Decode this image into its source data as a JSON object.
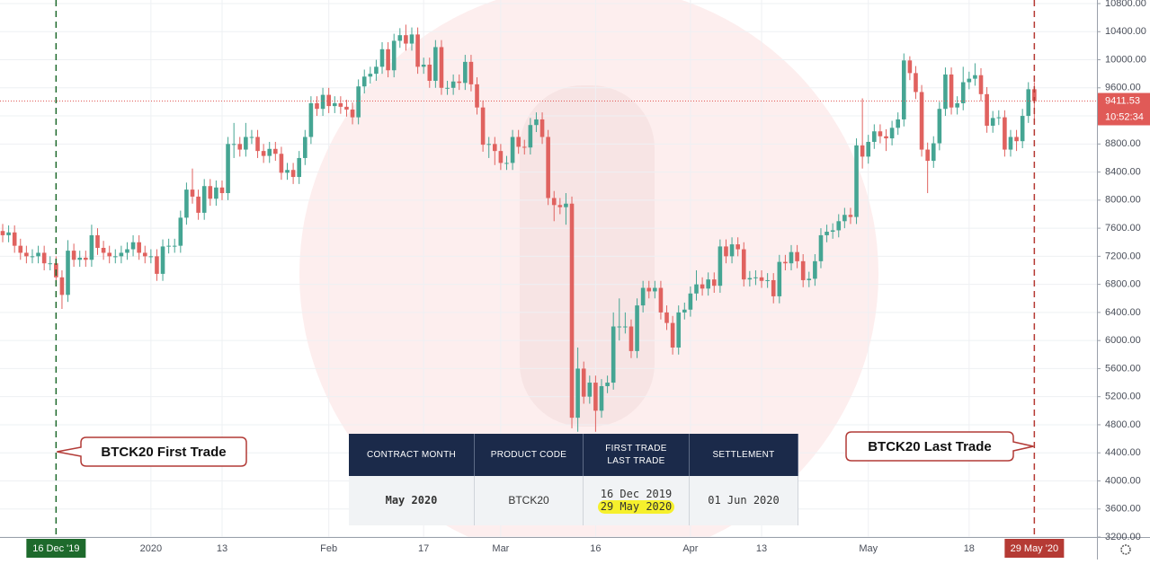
{
  "chart_data": {
    "type": "candlestick",
    "categories": [
      null,
      null,
      null,
      null,
      null,
      null,
      null,
      null,
      null,
      "16 Dec '19",
      null,
      null,
      null,
      null,
      null,
      null,
      null,
      null,
      null,
      null,
      null,
      null,
      null,
      null,
      null,
      "2020",
      null,
      null,
      null,
      null,
      null,
      null,
      null,
      null,
      null,
      null,
      null,
      "13",
      null,
      null,
      null,
      null,
      null,
      null,
      null,
      null,
      null,
      null,
      null,
      null,
      null,
      null,
      null,
      null,
      null,
      "Feb",
      null,
      null,
      null,
      null,
      null,
      null,
      null,
      null,
      null,
      null,
      null,
      null,
      null,
      null,
      null,
      "17",
      null,
      null,
      null,
      null,
      null,
      null,
      null,
      null,
      null,
      null,
      null,
      null,
      "Mar",
      null,
      null,
      null,
      null,
      null,
      null,
      null,
      null,
      null,
      null,
      null,
      null,
      null,
      null,
      null,
      "16",
      null,
      null,
      null,
      null,
      null,
      null,
      null,
      null,
      null,
      null,
      null,
      null,
      null,
      null,
      null,
      "Apr",
      null,
      null,
      null,
      null,
      null,
      null,
      null,
      null,
      null,
      null,
      null,
      "13",
      null,
      null,
      null,
      null,
      null,
      null,
      null,
      null,
      null,
      null,
      null,
      null,
      null,
      null,
      null,
      null,
      null,
      "May",
      null,
      null,
      null,
      null,
      null,
      null,
      null,
      null,
      null,
      null,
      null,
      null,
      null,
      null,
      null,
      null,
      "18",
      null,
      null,
      null,
      null,
      null,
      null,
      null,
      null,
      null,
      null,
      "29 May '20"
    ],
    "open": [
      7560,
      7500,
      7540,
      7350,
      7250,
      7200,
      7200,
      7250,
      7100,
      7100,
      6900,
      6650,
      7280,
      7150,
      7180,
      7150,
      7500,
      7320,
      7250,
      7200,
      7200,
      7250,
      7300,
      7400,
      7250,
      7200,
      7200,
      6950,
      7340,
      7350,
      7350,
      7750,
      8150,
      8050,
      7820,
      8200,
      8020,
      8180,
      8100,
      8800,
      8800,
      8720,
      8900,
      8900,
      8700,
      8630,
      8730,
      8660,
      8390,
      8430,
      8330,
      8600,
      8900,
      9380,
      9300,
      9500,
      9340,
      9380,
      9330,
      9290,
      9180,
      9620,
      9760,
      9800,
      9900,
      10150,
      9850,
      10270,
      10350,
      10230,
      10360,
      9900,
      9930,
      9700,
      10180,
      9600,
      9600,
      9690,
      9670,
      9970,
      9650,
      9320,
      8790,
      8800,
      8700,
      8530,
      8530,
      8900,
      8760,
      8750,
      9070,
      9150,
      8900,
      8030,
      7930,
      7900,
      7950,
      4900,
      5600,
      5200,
      5400,
      5000,
      5350,
      5400,
      6200,
      6200,
      6200,
      5850,
      6500,
      6750,
      6700,
      6750,
      6400,
      6250,
      5900,
      6400,
      6440,
      6670,
      6800,
      6740,
      6870,
      6780,
      7340,
      7200,
      7370,
      7300,
      6870,
      6890,
      6900,
      6850,
      6860,
      6630,
      7120,
      7100,
      7260,
      7130,
      6860,
      6880,
      7130,
      7500,
      7550,
      7570,
      7700,
      7790,
      7760,
      8780,
      8620,
      8830,
      8980,
      8910,
      8880,
      9030,
      9150,
      9990,
      9810,
      9540,
      8720,
      8560,
      8810,
      9300,
      9790,
      9320,
      9380,
      9680,
      9730,
      9780,
      9510,
      9060,
      9170,
      9180,
      8720,
      8900,
      8840,
      9200,
      9580
    ],
    "high": [
      7660,
      7640,
      7640,
      7450,
      7350,
      7300,
      7350,
      7350,
      7200,
      7200,
      7000,
      7430,
      7380,
      7280,
      7280,
      7650,
      7600,
      7420,
      7350,
      7300,
      7350,
      7400,
      7500,
      7500,
      7350,
      7300,
      7300,
      7440,
      7450,
      7450,
      7850,
      8250,
      8450,
      8150,
      8300,
      8300,
      8280,
      8280,
      8900,
      9100,
      8900,
      9100,
      9000,
      9000,
      8800,
      8830,
      8830,
      8760,
      8530,
      8530,
      8700,
      9000,
      9480,
      9480,
      9600,
      9600,
      9480,
      9480,
      9430,
      9390,
      9720,
      9860,
      9900,
      10000,
      10250,
      10250,
      10370,
      10450,
      10500,
      10460,
      10460,
      10030,
      10030,
      10280,
      10280,
      9700,
      9790,
      9790,
      10070,
      10070,
      9750,
      9420,
      8900,
      8900,
      8800,
      8630,
      9000,
      9000,
      8860,
      9170,
      9250,
      9250,
      9000,
      8130,
      8030,
      8100,
      8050,
      5900,
      5700,
      5500,
      5500,
      5450,
      5500,
      6400,
      6600,
      6400,
      6300,
      6600,
      6850,
      6850,
      6850,
      6850,
      6500,
      6350,
      6500,
      6540,
      6770,
      7000,
      6900,
      6970,
      6970,
      7440,
      7440,
      7470,
      7470,
      7400,
      6990,
      7000,
      7000,
      6960,
      6960,
      7220,
      7220,
      7360,
      7360,
      7230,
      6980,
      7230,
      7600,
      7650,
      7670,
      7800,
      7890,
      7890,
      8880,
      9450,
      8930,
      9080,
      9080,
      9010,
      9130,
      9250,
      10090,
      10050,
      9910,
      9640,
      8820,
      8910,
      9400,
      9890,
      9890,
      9480,
      9900,
      9830,
      9950,
      9880,
      9610,
      9270,
      9280,
      9280,
      9000,
      9000,
      9300,
      9680,
      9680
    ],
    "low": [
      7400,
      7400,
      7250,
      7150,
      7100,
      7100,
      7100,
      7000,
      7000,
      6800,
      6450,
      6550,
      7050,
      7050,
      7050,
      7050,
      7220,
      7150,
      7100,
      7100,
      7100,
      7150,
      7200,
      7150,
      7100,
      7100,
      6850,
      6850,
      7240,
      7250,
      7250,
      7650,
      7950,
      7720,
      7720,
      7920,
      7920,
      8000,
      8000,
      8600,
      8620,
      8620,
      8800,
      8600,
      8530,
      8530,
      8560,
      8290,
      8290,
      8230,
      8230,
      8500,
      8800,
      9200,
      9200,
      9240,
      9240,
      9230,
      9190,
      9080,
      9080,
      9520,
      9660,
      9700,
      9800,
      9750,
      9750,
      10170,
      10130,
      10130,
      9800,
      9800,
      9600,
      9600,
      9500,
      9500,
      9500,
      9570,
      9570,
      9550,
      9220,
      8690,
      8600,
      8500,
      8430,
      8430,
      8430,
      8660,
      8650,
      8650,
      8970,
      8800,
      7930,
      7700,
      7800,
      7650,
      4750,
      4700,
      5100,
      5100,
      4700,
      4900,
      5250,
      5300,
      6000,
      6100,
      5750,
      5750,
      6400,
      6600,
      6600,
      6300,
      6150,
      5800,
      5800,
      6300,
      6340,
      6570,
      6640,
      6640,
      6680,
      6680,
      7100,
      7100,
      7200,
      6770,
      6770,
      6790,
      6750,
      6750,
      6530,
      6530,
      7000,
      7000,
      7030,
      6760,
      6760,
      6780,
      7030,
      7400,
      7450,
      7470,
      7600,
      7660,
      7660,
      8450,
      8520,
      8730,
      8810,
      8700,
      8780,
      8930,
      9050,
      9710,
      9440,
      8620,
      8100,
      8460,
      8710,
      9200,
      9220,
      9220,
      9280,
      9580,
      9630,
      9410,
      8960,
      8960,
      9070,
      8620,
      8620,
      8700,
      8740,
      9100,
      9150
    ],
    "close": [
      7500,
      7540,
      7350,
      7250,
      7200,
      7200,
      7250,
      7100,
      7100,
      6900,
      6650,
      7280,
      7150,
      7180,
      7150,
      7500,
      7320,
      7250,
      7200,
      7200,
      7250,
      7300,
      7400,
      7250,
      7200,
      7200,
      6950,
      7340,
      7350,
      7350,
      7750,
      8150,
      8050,
      7820,
      8200,
      8020,
      8180,
      8100,
      8800,
      8800,
      8720,
      8900,
      8900,
      8700,
      8630,
      8730,
      8660,
      8390,
      8430,
      8330,
      8600,
      8900,
      9380,
      9300,
      9500,
      9340,
      9380,
      9330,
      9290,
      9180,
      9620,
      9760,
      9800,
      9900,
      10150,
      9850,
      10270,
      10350,
      10230,
      10360,
      9900,
      9930,
      9700,
      10180,
      9600,
      9600,
      9690,
      9670,
      9970,
      9650,
      9320,
      8790,
      8800,
      8700,
      8530,
      8530,
      8900,
      8760,
      8750,
      9070,
      9150,
      8900,
      8030,
      7930,
      7900,
      7950,
      4900,
      5600,
      5200,
      5400,
      5000,
      5350,
      5400,
      6200,
      6200,
      6200,
      5850,
      6500,
      6750,
      6700,
      6750,
      6400,
      6250,
      5900,
      6400,
      6440,
      6670,
      6800,
      6740,
      6870,
      6780,
      7340,
      7200,
      7370,
      7300,
      6870,
      6890,
      6900,
      6850,
      6860,
      6630,
      7120,
      7100,
      7260,
      7130,
      6860,
      6880,
      7130,
      7500,
      7550,
      7570,
      7700,
      7790,
      7760,
      8780,
      8620,
      8830,
      8980,
      8910,
      8880,
      9030,
      9150,
      9990,
      9810,
      9540,
      8720,
      8560,
      8810,
      9300,
      9790,
      9320,
      9380,
      9680,
      9730,
      9780,
      9510,
      9060,
      9170,
      9180,
      8720,
      8900,
      8840,
      9200,
      9580,
      9411.53
    ],
    "up_color": "#45a593",
    "down_color": "#e0625f",
    "ylim": [
      3200,
      10800
    ],
    "yticks": [
      {
        "value": 3200,
        "label": "3200.00"
      },
      {
        "value": 3600,
        "label": "3600.00"
      },
      {
        "value": 4000,
        "label": "4000.00"
      },
      {
        "value": 4400,
        "label": "4400.00"
      },
      {
        "value": 4800,
        "label": "4800.00"
      },
      {
        "value": 5200,
        "label": "5200.00"
      },
      {
        "value": 5600,
        "label": "5600.00"
      },
      {
        "value": 6000,
        "label": "6000.00"
      },
      {
        "value": 6400,
        "label": "6400.00"
      },
      {
        "value": 6800,
        "label": "6800.00"
      },
      {
        "value": 7200,
        "label": "7200.00"
      },
      {
        "value": 7600,
        "label": "7600.00"
      },
      {
        "value": 8000,
        "label": "8000.00"
      },
      {
        "value": 8400,
        "label": "8400.00"
      },
      {
        "value": 8800,
        "label": "8800.00"
      },
      {
        "value": 9200,
        "label": "9200.00"
      },
      {
        "value": 9600,
        "label": "9600.00"
      },
      {
        "value": 10000,
        "label": "10000.00"
      },
      {
        "value": 10400,
        "label": "10400.00"
      },
      {
        "value": 10800,
        "label": "10800.00"
      }
    ],
    "grid": true,
    "last_price": {
      "value": 9411.53,
      "countdown": "10:52:34",
      "color": "#e05a57"
    },
    "vertical_lines": [
      {
        "at": "16 Dec '19",
        "color": "#1e6a2c",
        "side": "left"
      },
      {
        "at": "29 May '20",
        "color": "#b53a34",
        "side": "right"
      }
    ],
    "annotations": [
      {
        "text": "BTCK20 First Trade"
      },
      {
        "text": "BTCK20 Last Trade"
      }
    ]
  },
  "table": {
    "headers": [
      "CONTRACT MONTH",
      "PRODUCT CODE",
      [
        "FIRST TRADE",
        "LAST TRADE"
      ],
      "SETTLEMENT"
    ],
    "row": [
      "May 2020",
      "BTCK20",
      [
        "16 Dec 2019",
        "29 May 2020"
      ],
      "01 Jun 2020"
    ]
  }
}
